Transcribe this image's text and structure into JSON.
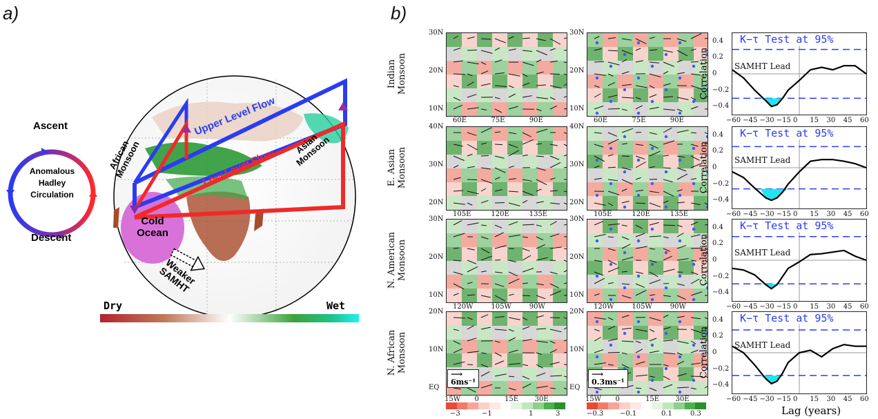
{
  "panel_a": {
    "label": "a)",
    "circulation": {
      "ascent": "Ascent",
      "descent": "Descent",
      "center": [
        "Anomalous",
        "Hadley",
        "Circulation"
      ]
    },
    "globe_labels": {
      "african_monsoon": [
        "African",
        "Monsoon"
      ],
      "asian_monsoon": [
        "Asian",
        "Monsoon"
      ],
      "upper_flow": "Upper Level Flow",
      "low_flow": "Low Level Flow",
      "cold_ocean": [
        "Cold",
        "Ocean"
      ],
      "weaker_samht": [
        "Weaker",
        "SAMHT"
      ]
    },
    "colorbar": {
      "dry": "Dry",
      "wet": "Wet"
    }
  },
  "panel_b": {
    "label": "b)",
    "rows": [
      {
        "name": [
          "Indian",
          "Monsoon"
        ],
        "lat_ticks": [
          "30N",
          "20N",
          "10N"
        ],
        "lon_ticks": [
          "60E",
          "75E",
          "90E"
        ]
      },
      {
        "name": [
          "E. Asian",
          "Monsoon"
        ],
        "lat_ticks": [
          "40N",
          "30N",
          "20N"
        ],
        "lon_ticks": [
          "105E",
          "120E",
          "135E"
        ]
      },
      {
        "name": [
          "N. American",
          "Monsoon"
        ],
        "lat_ticks": [
          "30N",
          "20N",
          "10N"
        ],
        "lon_ticks": [
          "120W",
          "105W",
          "90W"
        ]
      },
      {
        "name": [
          "N. African",
          "Monsoon"
        ],
        "lat_ticks": [
          "20N",
          "10N",
          "EQ"
        ],
        "lon_ticks": [
          "15W",
          "0",
          "15E",
          "30E"
        ]
      }
    ],
    "vector_keys": [
      "6ms⁻¹",
      "0.3ms⁻¹"
    ],
    "colorbar1_ticks": [
      "−3",
      "−1",
      "1",
      "3"
    ],
    "colorbar2_ticks": [
      "−0.3",
      "−0.1",
      "0.1",
      "0.3"
    ],
    "test_label": "K−τ Test at 95%",
    "lead_label": "SAMHT Lead",
    "ylabel": "Correlation",
    "y_ticks": [
      "0.4",
      "0.2",
      "0",
      "−0.2",
      "−0.4"
    ],
    "x_ticks": [
      "−60",
      "−45",
      "−30",
      "−15",
      "0",
      "15",
      "30",
      "45",
      "60"
    ],
    "xlabel": "Lag (years)"
  },
  "chart_data": [
    {
      "type": "line",
      "x": [
        -60,
        -50,
        -40,
        -30,
        -25,
        -20,
        -15,
        -10,
        0,
        10,
        20,
        30,
        40,
        50,
        60
      ],
      "y": [
        0.05,
        -0.05,
        -0.2,
        -0.33,
        -0.4,
        -0.38,
        -0.3,
        -0.2,
        -0.08,
        0.05,
        0.08,
        0.05,
        0.1,
        0.1,
        0.0
      ],
      "xlim": [
        -60,
        60
      ],
      "ylim": [
        -0.5,
        0.5
      ],
      "threshold": [
        0.3,
        -0.3
      ]
    },
    {
      "type": "line",
      "x": [
        -60,
        -50,
        -40,
        -30,
        -25,
        -20,
        -15,
        -10,
        0,
        10,
        20,
        30,
        40,
        50,
        60
      ],
      "y": [
        -0.05,
        -0.12,
        -0.25,
        -0.37,
        -0.4,
        -0.37,
        -0.3,
        -0.2,
        -0.05,
        0.08,
        0.1,
        0.1,
        0.08,
        0.05,
        0.0
      ],
      "xlim": [
        -60,
        60
      ],
      "ylim": [
        -0.5,
        0.5
      ],
      "threshold": [
        0.26,
        -0.26
      ]
    },
    {
      "type": "line",
      "x": [
        -60,
        -50,
        -40,
        -30,
        -25,
        -20,
        -15,
        -10,
        0,
        10,
        20,
        30,
        40,
        50,
        60
      ],
      "y": [
        -0.1,
        -0.12,
        -0.18,
        -0.3,
        -0.35,
        -0.3,
        -0.2,
        -0.1,
        -0.02,
        0.07,
        0.08,
        0.1,
        0.12,
        0.05,
        0.0
      ],
      "xlim": [
        -60,
        60
      ],
      "ylim": [
        -0.5,
        0.5
      ],
      "threshold": [
        0.29,
        -0.29
      ]
    },
    {
      "type": "line",
      "x": [
        -60,
        -50,
        -40,
        -30,
        -25,
        -20,
        -15,
        -10,
        0,
        10,
        20,
        30,
        40,
        50,
        60
      ],
      "y": [
        0.08,
        0.0,
        -0.15,
        -0.32,
        -0.38,
        -0.35,
        -0.25,
        -0.12,
        0.0,
        0.03,
        -0.05,
        0.05,
        0.1,
        0.08,
        0.08
      ],
      "xlim": [
        -60,
        60
      ],
      "ylim": [
        -0.5,
        0.5
      ],
      "threshold": [
        0.28,
        -0.28
      ]
    }
  ]
}
